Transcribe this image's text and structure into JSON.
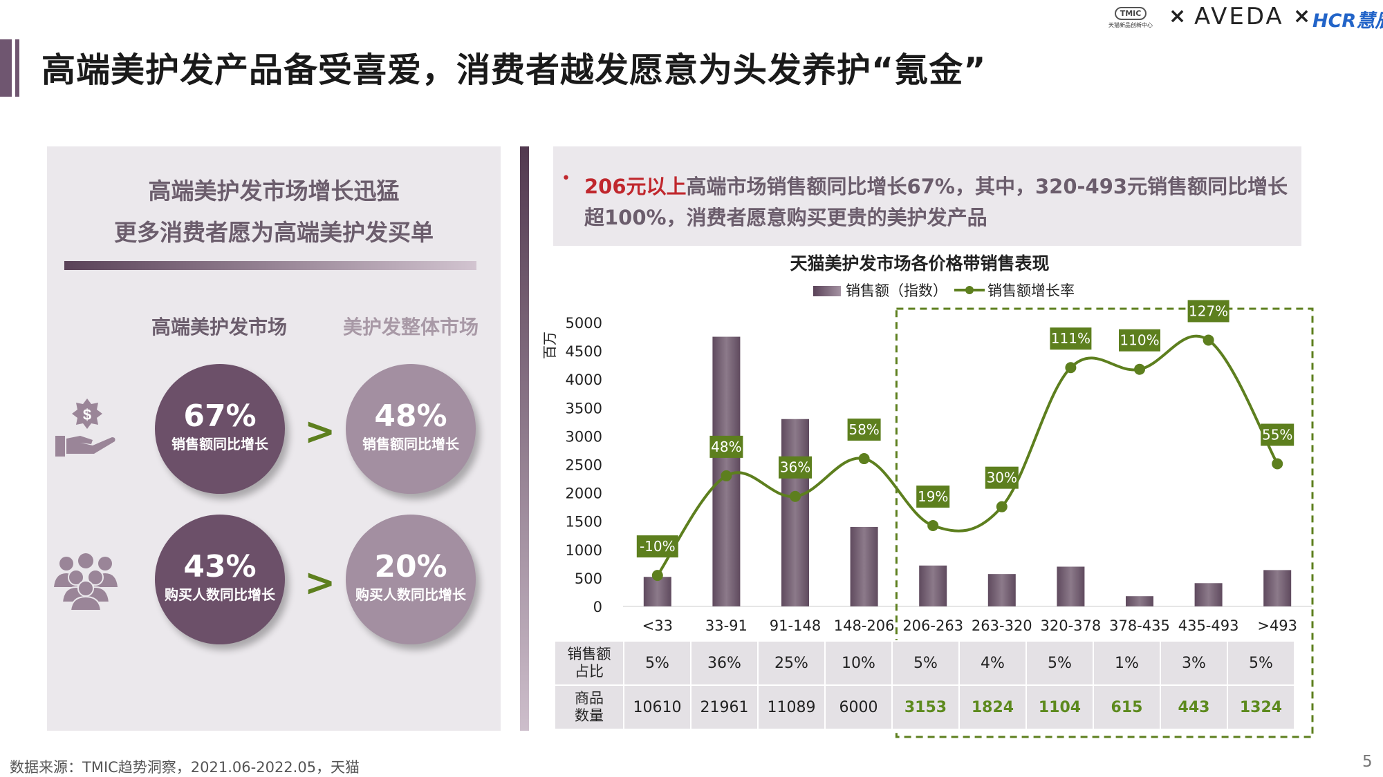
{
  "header": {
    "title": "高端美护发产品备受喜爱，消费者越发愿意为头发养护“氪金”",
    "logos": {
      "tmic_badge": "TMIC",
      "tmic_sub": "天猫新品创新中心",
      "x1": "×",
      "aveda": "AVEDA",
      "x2": "×",
      "hcr": "HCR慧辰"
    }
  },
  "left": {
    "heading_line1": "高端美护发市场增长迅猛",
    "heading_line2": "更多消费者愿为高端美护发买单",
    "col_high": "高端美护发市场",
    "col_overall": "美护发整体市场",
    "gt_symbol": ">",
    "rows": [
      {
        "icon": "money-hand-icon",
        "high": {
          "value": "67%",
          "label": "销售额同比增长"
        },
        "overall": {
          "value": "48%",
          "label": "销售额同比增长"
        }
      },
      {
        "icon": "people-group-icon",
        "high": {
          "value": "43%",
          "label": "购买人数同比增长"
        },
        "overall": {
          "value": "20%",
          "label": "购买人数同比增长"
        }
      }
    ]
  },
  "note": {
    "bullet": "•",
    "line1_red": "206元以上",
    "line1_rest": "高端市场销售额同比增长67%，其中，320-493元销售额同比增长",
    "line2": "超100%，消费者愿意购买更贵的美护发产品"
  },
  "chart_data": {
    "type": "bar",
    "title": "天猫美护发市场各价格带销售表现",
    "ylabel": "百万",
    "ylim": [
      0,
      5000
    ],
    "yticks": [
      "5000",
      "4500",
      "4000",
      "3500",
      "3000",
      "2500",
      "2000",
      "1500",
      "1000",
      "500",
      "0"
    ],
    "categories": [
      "<33",
      "33-91",
      "91-148",
      "148-206",
      "206-263",
      "263-320",
      "320-378",
      "378-435",
      "435-493",
      ">493"
    ],
    "series": [
      {
        "name": "销售额（指数）",
        "type": "bar",
        "values": [
          520,
          4750,
          3300,
          1400,
          720,
          570,
          700,
          180,
          410,
          640
        ]
      },
      {
        "name": "销售额增长率",
        "type": "line",
        "values": [
          -10,
          48,
          36,
          58,
          19,
          30,
          111,
          110,
          127,
          55
        ],
        "labels": [
          "-10%",
          "48%",
          "36%",
          "58%",
          "19%",
          "30%",
          "111%",
          "110%",
          "127%",
          "55%"
        ]
      }
    ],
    "highlight_categories": [
      "206-263",
      "263-320",
      "320-378",
      "378-435",
      "435-493",
      ">493"
    ],
    "table": {
      "row_headers": [
        [
          "销售额",
          "占比"
        ],
        [
          "商品",
          "数量"
        ]
      ],
      "share": [
        "5%",
        "36%",
        "25%",
        "10%",
        "5%",
        "4%",
        "5%",
        "1%",
        "3%",
        "5%"
      ],
      "count": [
        "10610",
        "21961",
        "11089",
        "6000",
        "3153",
        "1824",
        "1104",
        "615",
        "443",
        "1324"
      ]
    },
    "colors": {
      "bar": "#7e6a7c",
      "line": "#5d7f1e",
      "label_bg": "#5d7f1e",
      "highlight_border": "#5d7f1e"
    }
  },
  "footer": {
    "source": "数据来源：TMIC趋势洞察，2021.06-2022.05，天猫",
    "page": "5"
  }
}
